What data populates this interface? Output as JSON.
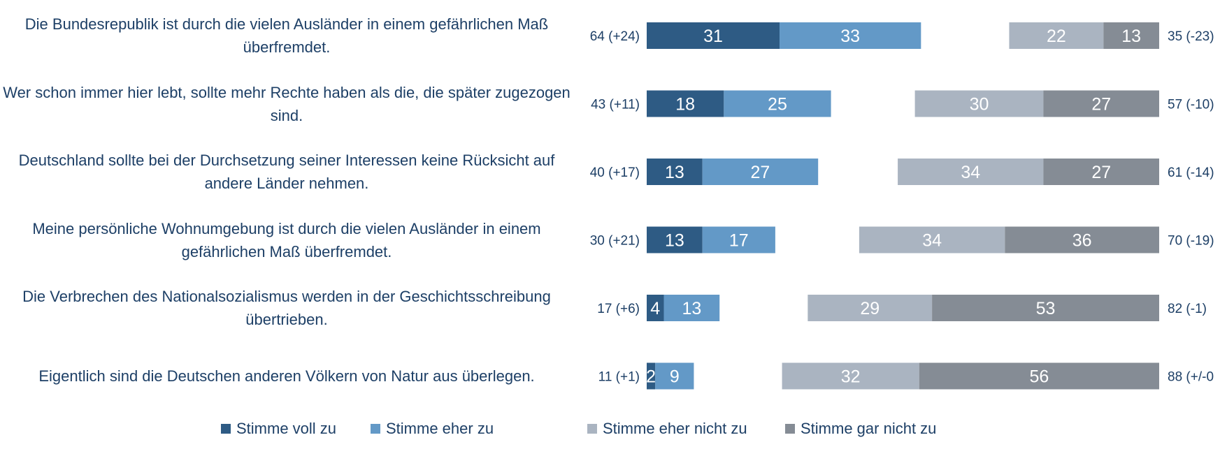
{
  "chart_data": {
    "type": "bar",
    "stacked": "diverging",
    "categories": [
      "Die Bundesrepublik ist durch die vielen Ausländer in einem gefährlichen Maß überfremdet.",
      "Wer schon immer hier lebt, sollte mehr Rechte haben als die, die später zugezogen sind.",
      "Deutschland sollte bei der Durchsetzung seiner Interessen keine Rücksicht auf andere Länder nehmen.",
      "Meine persönliche Wohnumgebung ist durch die vielen Ausländer in einem gefährlichen Maß überfremdet.",
      "Die Verbrechen des Nationalsozialismus werden in der Geschichtsschreibung übertrieben.",
      "Eigentlich sind die Deutschen anderen Völkern von Natur aus überlegen."
    ],
    "series": [
      {
        "name": "Stimme voll zu",
        "color": "#2e5b84",
        "side": "agree",
        "values": [
          31,
          18,
          13,
          13,
          4,
          2
        ]
      },
      {
        "name": "Stimme eher zu",
        "color": "#6399c7",
        "side": "agree",
        "values": [
          33,
          25,
          27,
          17,
          13,
          9
        ]
      },
      {
        "name": "Stimme eher nicht zu",
        "color": "#aab4c1",
        "side": "disagree",
        "values": [
          22,
          30,
          34,
          34,
          29,
          32
        ]
      },
      {
        "name": "Stimme gar nicht zu",
        "color": "#858c95",
        "side": "disagree",
        "values": [
          13,
          27,
          27,
          36,
          53,
          56
        ]
      }
    ],
    "agree_totals": [
      "64 (+24)",
      "43 (+11)",
      "40 (+17)",
      "30 (+21)",
      "17 (+6)",
      "11 (+1)"
    ],
    "disagree_totals": [
      "35 (-23)",
      "57 (-10)",
      "61 (-14)",
      "70 (-19)",
      "82 (-1)",
      "88 (+/-0"
    ],
    "legend_position": "bottom",
    "grid": false
  },
  "colors": {
    "label_text": "#1d3f66",
    "total_text": "#1d3f66",
    "bar_value_text": "#ffffff"
  }
}
